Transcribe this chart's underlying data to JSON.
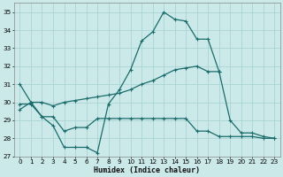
{
  "title": "",
  "xlabel": "Humidex (Indice chaleur)",
  "xlim": [
    -0.5,
    23.5
  ],
  "ylim": [
    27,
    35.5
  ],
  "yticks": [
    27,
    28,
    29,
    30,
    31,
    32,
    33,
    34,
    35
  ],
  "xticks": [
    0,
    1,
    2,
    3,
    4,
    5,
    6,
    7,
    8,
    9,
    10,
    11,
    12,
    13,
    14,
    15,
    16,
    17,
    18,
    19,
    20,
    21,
    22,
    23
  ],
  "bg_color": "#cce9e9",
  "grid_color": "#aad4d4",
  "line_color": "#1a6b6b",
  "line1_x": [
    0,
    1,
    2,
    3,
    4,
    5,
    6,
    7,
    8,
    9,
    10,
    11,
    12,
    13,
    14,
    15,
    16,
    17,
    18
  ],
  "line1_y": [
    31.0,
    30.0,
    29.2,
    28.7,
    27.5,
    27.5,
    27.5,
    27.2,
    29.9,
    30.7,
    31.8,
    33.4,
    33.9,
    35.0,
    34.6,
    34.5,
    33.5,
    33.5,
    31.7
  ],
  "line2_x": [
    0,
    1,
    2,
    3,
    4,
    5,
    6,
    7,
    8,
    9,
    10,
    11,
    12,
    13,
    14,
    15,
    16,
    17,
    18,
    19,
    20,
    21,
    22,
    23
  ],
  "line2_y": [
    29.9,
    29.9,
    29.2,
    29.2,
    28.4,
    28.6,
    28.6,
    29.1,
    29.1,
    29.1,
    29.1,
    29.1,
    29.1,
    29.1,
    29.1,
    29.1,
    28.4,
    28.4,
    28.1,
    28.1,
    28.1,
    28.1,
    28.0,
    28.0
  ],
  "line3_x": [
    0,
    1,
    2,
    3,
    4,
    5,
    6,
    7,
    8,
    9,
    10,
    11,
    12,
    13,
    14,
    15,
    16,
    17,
    18,
    19,
    20,
    21,
    22,
    23
  ],
  "line3_y": [
    29.6,
    30.0,
    30.0,
    29.8,
    30.0,
    30.1,
    30.2,
    30.3,
    30.4,
    30.5,
    30.7,
    31.0,
    31.2,
    31.5,
    31.8,
    31.9,
    32.0,
    31.7,
    31.7,
    29.0,
    28.3,
    28.3,
    28.1,
    28.0
  ]
}
